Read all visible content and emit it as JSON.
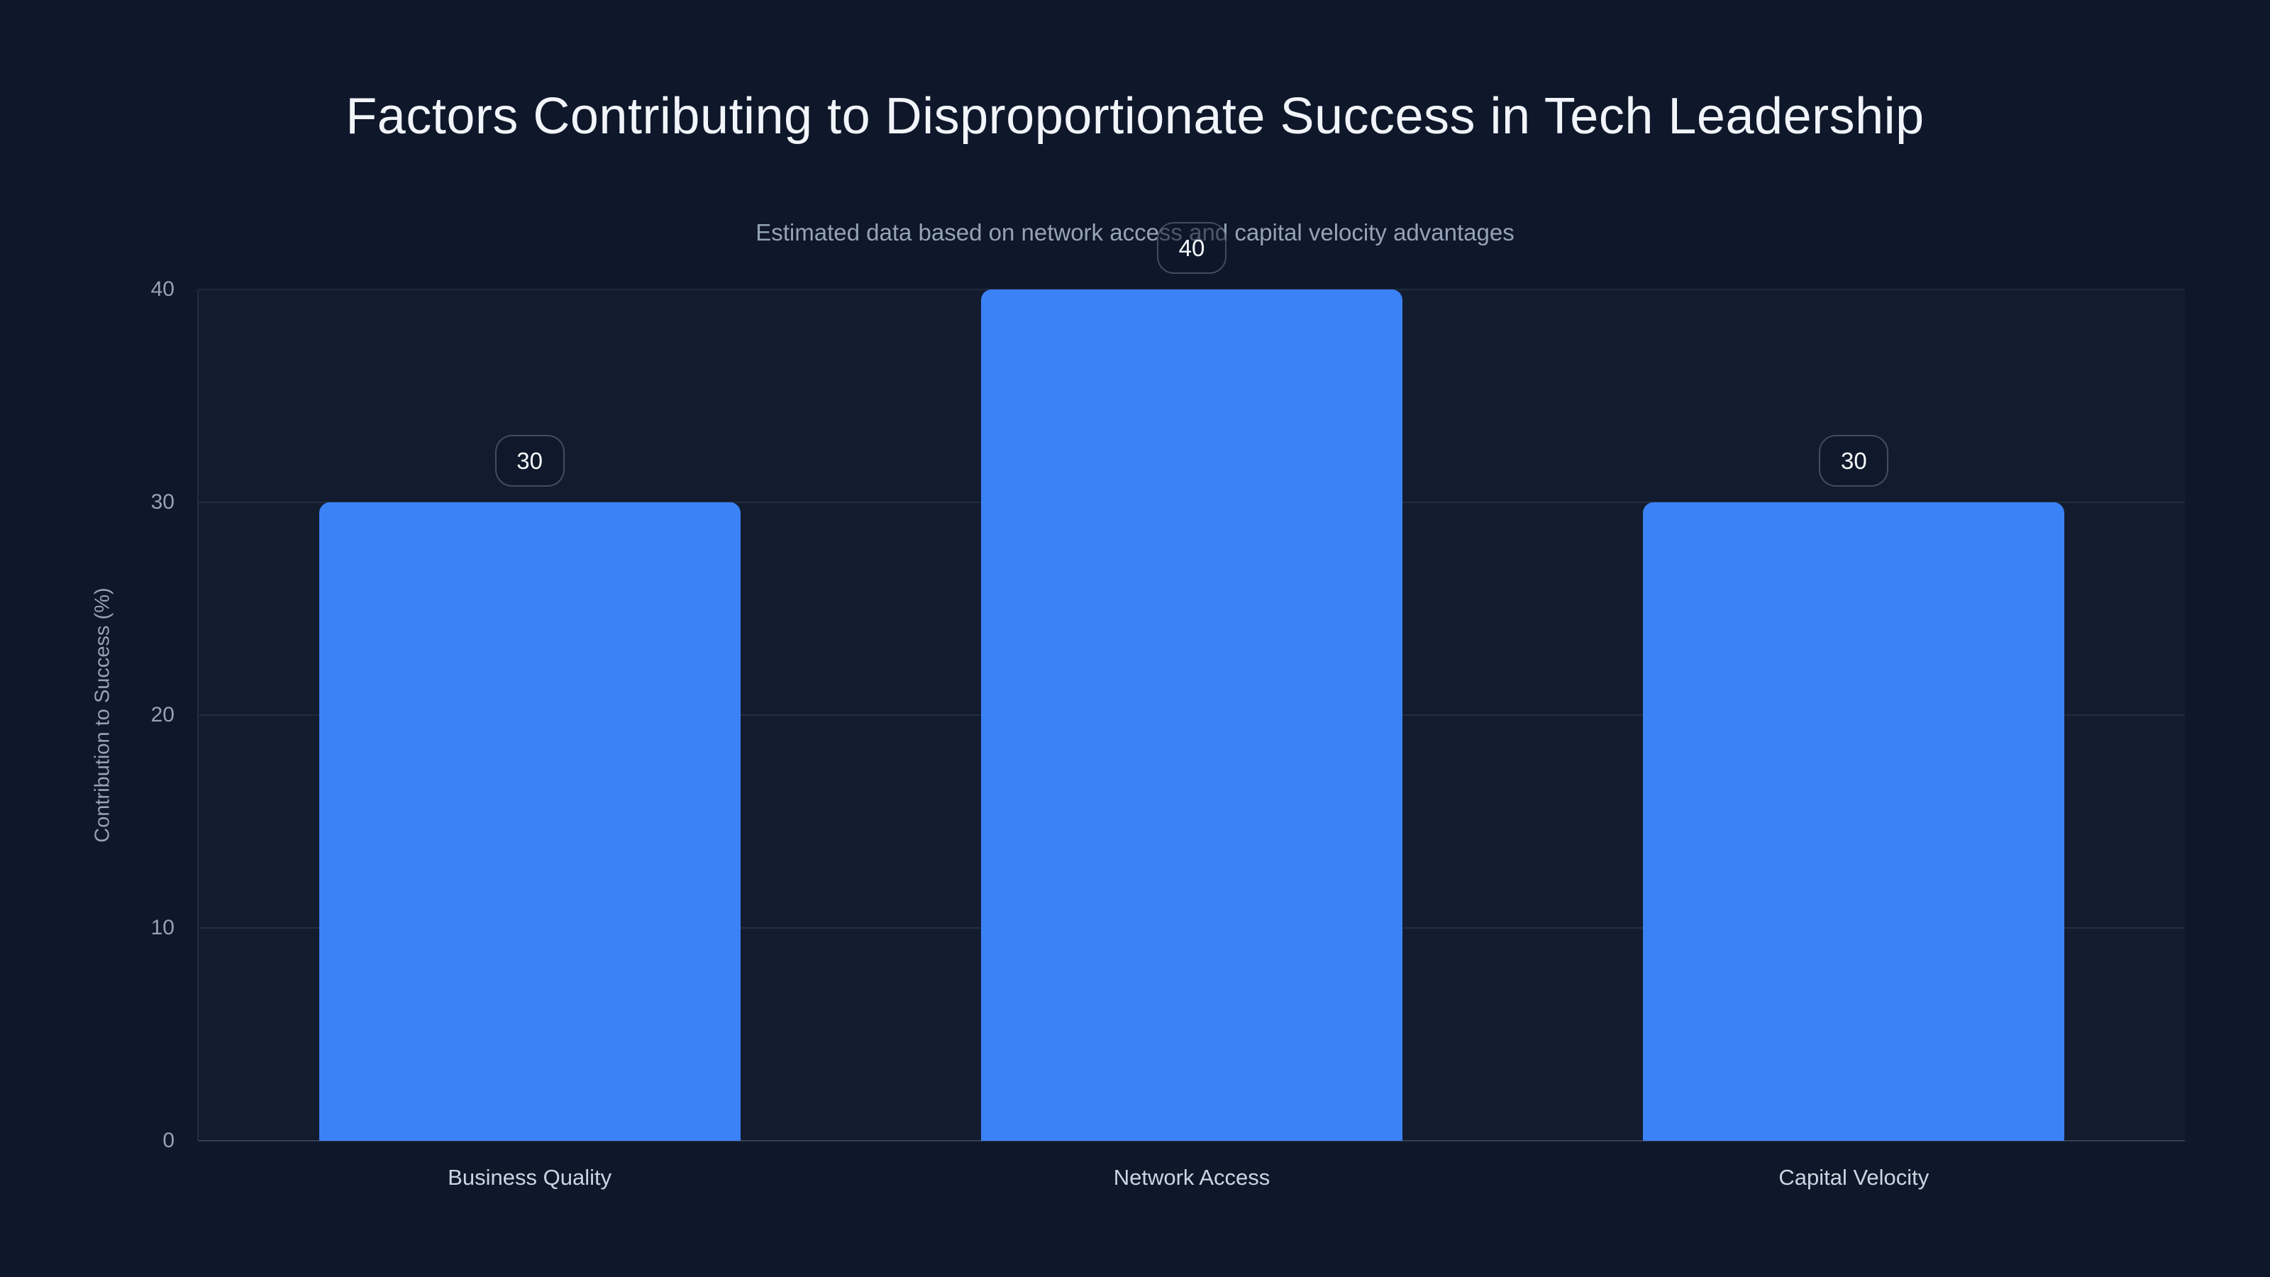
{
  "chart_data": {
    "type": "bar",
    "title": "Factors Contributing to Disproportionate Success in Tech Leadership",
    "subtitle": "Estimated data based on network access and capital velocity advantages",
    "categories": [
      "Business Quality",
      "Network Access",
      "Capital Velocity"
    ],
    "values": [
      30,
      40,
      30
    ],
    "value_labels": [
      "30",
      "40",
      "30"
    ],
    "xlabel": "",
    "ylabel": "Contribution to Success (%)",
    "yticks": [
      0,
      10,
      20,
      30,
      40
    ],
    "ylim": [
      0,
      40
    ],
    "grid": true,
    "legend": "none",
    "bar_color": "#3b82f6"
  },
  "colors": {
    "background": "#0f172a",
    "bar": "#3b82f6",
    "title_text": "#f1f5f9",
    "subtitle_text": "#94a3b8",
    "tick_text": "#94a3b8",
    "category_text": "#cbd5e1",
    "badge_text": "#f8fafc",
    "gridline": "rgba(148,163,184,0.13)"
  }
}
